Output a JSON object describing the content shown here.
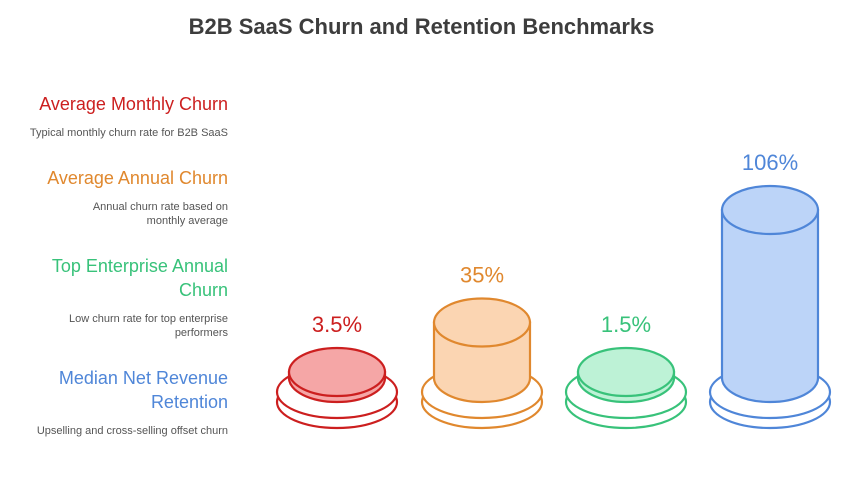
{
  "title": "B2B SaaS Churn and Retention Benchmarks",
  "chart_data": {
    "type": "bar",
    "style": "3d-cylinder",
    "categories": [
      "Average Monthly Churn",
      "Average Annual Churn",
      "Top Enterprise Annual Churn",
      "Median Net Revenue Retention"
    ],
    "descriptions": [
      "Typical monthly churn rate for B2B SaaS",
      "Annual churn rate based on monthly average",
      "Low churn rate for top enterprise performers",
      "Upselling and cross-selling offset churn"
    ],
    "values": [
      3.5,
      35,
      1.5,
      106
    ],
    "value_labels": [
      "3.5%",
      "35%",
      "1.5%",
      "106%"
    ],
    "unit": "%",
    "colors": {
      "stroke": [
        "#cc1f1f",
        "#e0882e",
        "#38c27a",
        "#4f86d8"
      ],
      "fill": [
        "#f5a6a6",
        "#fbd5b2",
        "#bdf2d6",
        "#bcd4f8"
      ],
      "label": [
        "#cc1f1f",
        "#e0882e",
        "#38c27a",
        "#4f86d8"
      ]
    },
    "legend_position": "left",
    "grid": false
  }
}
